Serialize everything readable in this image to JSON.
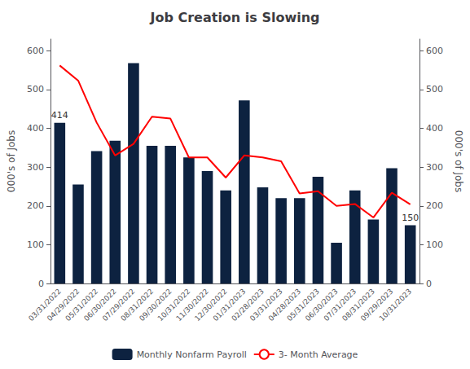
{
  "chart_data": {
    "type": "bar",
    "title": "Job Creation is Slowing",
    "categories": [
      "03/31/2022",
      "04/29/2022",
      "05/31/2022",
      "06/30/2022",
      "07/29/2022",
      "08/31/2022",
      "09/30/2022",
      "10/31/2022",
      "11/30/2022",
      "12/30/2022",
      "01/31/2023",
      "02/28/2023",
      "03/31/2023",
      "04/28/2023",
      "05/31/2023",
      "06/30/2023",
      "07/31/2023",
      "08/31/2023",
      "09/29/2023",
      "10/31/2023"
    ],
    "series": [
      {
        "name": "Monthly Nonfarm Payroll",
        "type": "bar",
        "color": "#0d2240",
        "values": [
          414,
          255,
          341,
          368,
          568,
          355,
          355,
          325,
          290,
          240,
          472,
          248,
          220,
          220,
          275,
          105,
          240,
          165,
          297,
          150
        ]
      },
      {
        "name": "3- Month Average",
        "type": "line",
        "color": "#ff0000",
        "values": [
          562,
          523,
          415,
          330,
          360,
          430,
          425,
          325,
          325,
          273,
          330,
          325,
          315,
          232,
          238,
          200,
          205,
          170,
          234,
          204
        ]
      }
    ],
    "ylabel": "000's of Jobs",
    "y2label": "000's of Jobs",
    "ylim": [
      0,
      630
    ],
    "yticks": [
      0,
      100,
      200,
      300,
      400,
      500,
      600
    ],
    "y2lim": [
      0,
      630
    ],
    "y2ticks": [
      0,
      100,
      200,
      300,
      400,
      500,
      600
    ],
    "grid": false,
    "legend": "bottom",
    "annotations": [
      {
        "text": "414",
        "category": "03/31/2022",
        "series": "Monthly Nonfarm Payroll"
      },
      {
        "text": "150",
        "category": "10/31/2023",
        "series": "Monthly Nonfarm Payroll"
      }
    ]
  }
}
